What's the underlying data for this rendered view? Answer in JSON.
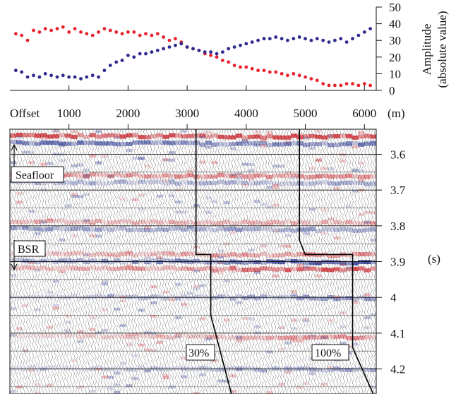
{
  "chart_data": [
    {
      "type": "scatter",
      "xlabel": "Offset",
      "x_unit": "(m)",
      "ylabel": "Amplitude",
      "ylabel_sub": "(absolute value)",
      "xlim": [
        0,
        6200
      ],
      "ylim": [
        0,
        50
      ],
      "x_ticks": [
        "1000",
        "2000",
        "3000",
        "4000",
        "5000",
        "6000"
      ],
      "y_ticks": [
        "0",
        "10",
        "20",
        "30",
        "40",
        "50"
      ],
      "series": [
        {
          "color": "#e8212b",
          "points": [
            [
              100,
              34
            ],
            [
              200,
              33
            ],
            [
              300,
              30
            ],
            [
              400,
              36
            ],
            [
              500,
              35
            ],
            [
              600,
              37
            ],
            [
              700,
              36
            ],
            [
              800,
              37
            ],
            [
              900,
              38
            ],
            [
              1000,
              35
            ],
            [
              1100,
              37
            ],
            [
              1200,
              35
            ],
            [
              1300,
              34
            ],
            [
              1400,
              33
            ],
            [
              1500,
              35
            ],
            [
              1600,
              37
            ],
            [
              1700,
              36
            ],
            [
              1800,
              35
            ],
            [
              1900,
              34
            ],
            [
              2000,
              35
            ],
            [
              2100,
              35
            ],
            [
              2200,
              33
            ],
            [
              2300,
              34
            ],
            [
              2400,
              33
            ],
            [
              2500,
              34
            ],
            [
              2600,
              32
            ],
            [
              2700,
              30
            ],
            [
              2800,
              31
            ],
            [
              2900,
              29
            ],
            [
              3000,
              26
            ],
            [
              3100,
              25
            ],
            [
              3200,
              24
            ],
            [
              3300,
              22
            ],
            [
              3400,
              21
            ],
            [
              3500,
              20
            ],
            [
              3600,
              18
            ],
            [
              3700,
              17
            ],
            [
              3800,
              15
            ],
            [
              3900,
              14
            ],
            [
              4000,
              14
            ],
            [
              4100,
              13
            ],
            [
              4200,
              12
            ],
            [
              4300,
              12
            ],
            [
              4400,
              11
            ],
            [
              4500,
              11
            ],
            [
              4600,
              10
            ],
            [
              4700,
              9
            ],
            [
              4800,
              10
            ],
            [
              4900,
              9
            ],
            [
              5000,
              8
            ],
            [
              5100,
              7
            ],
            [
              5200,
              6
            ],
            [
              5300,
              4
            ],
            [
              5400,
              3
            ],
            [
              5500,
              3
            ],
            [
              5600,
              3
            ],
            [
              5700,
              4
            ],
            [
              5800,
              4
            ],
            [
              5900,
              3
            ],
            [
              6000,
              4
            ],
            [
              6100,
              3
            ]
          ]
        },
        {
          "color": "#2e2a8e",
          "points": [
            [
              100,
              12
            ],
            [
              200,
              11
            ],
            [
              300,
              8
            ],
            [
              400,
              9
            ],
            [
              500,
              8
            ],
            [
              600,
              10
            ],
            [
              700,
              9
            ],
            [
              800,
              8
            ],
            [
              900,
              9
            ],
            [
              1000,
              8
            ],
            [
              1100,
              8
            ],
            [
              1200,
              7
            ],
            [
              1300,
              8
            ],
            [
              1400,
              9
            ],
            [
              1500,
              8
            ],
            [
              1600,
              12
            ],
            [
              1700,
              15
            ],
            [
              1800,
              17
            ],
            [
              1900,
              18
            ],
            [
              2000,
              21
            ],
            [
              2100,
              20
            ],
            [
              2200,
              22
            ],
            [
              2300,
              22
            ],
            [
              2400,
              23
            ],
            [
              2500,
              24
            ],
            [
              2600,
              25
            ],
            [
              2700,
              26
            ],
            [
              2800,
              27
            ],
            [
              2900,
              28
            ],
            [
              3000,
              26
            ],
            [
              3100,
              25
            ],
            [
              3200,
              24
            ],
            [
              3300,
              23
            ],
            [
              3400,
              23
            ],
            [
              3500,
              22
            ],
            [
              3600,
              23
            ],
            [
              3700,
              25
            ],
            [
              3800,
              26
            ],
            [
              3900,
              27
            ],
            [
              4000,
              28
            ],
            [
              4100,
              29
            ],
            [
              4200,
              30
            ],
            [
              4300,
              31
            ],
            [
              4400,
              31
            ],
            [
              4500,
              32
            ],
            [
              4600,
              31
            ],
            [
              4700,
              30
            ],
            [
              4800,
              31
            ],
            [
              4900,
              32
            ],
            [
              5000,
              31
            ],
            [
              5100,
              30
            ],
            [
              5200,
              31
            ],
            [
              5300,
              30
            ],
            [
              5400,
              29
            ],
            [
              5500,
              30
            ],
            [
              5600,
              31
            ],
            [
              5700,
              29
            ],
            [
              5800,
              31
            ],
            [
              5900,
              33
            ],
            [
              6000,
              35
            ],
            [
              6100,
              37
            ]
          ]
        }
      ]
    },
    {
      "type": "heatmap",
      "ylabel_unit": "(s)",
      "ylim": [
        3.53,
        4.27
      ],
      "y_ticks": [
        "3.6",
        "3.7",
        "3.8",
        "3.9",
        "4",
        "4.1",
        "4.2"
      ],
      "xlim": [
        0,
        6200
      ],
      "colors": {
        "positive": "#d9353b",
        "negative": "#2b3a9a"
      },
      "events": [
        {
          "time": 3.55,
          "amp": 1.0
        },
        {
          "time": 3.57,
          "amp": -0.7
        },
        {
          "time": 3.66,
          "amp": 0.6
        },
        {
          "time": 3.68,
          "amp": -0.4
        },
        {
          "time": 3.79,
          "amp": 0.4
        },
        {
          "time": 3.81,
          "amp": -0.5
        },
        {
          "time": 3.88,
          "amp": 0.6
        },
        {
          "time": 3.9,
          "amp": -0.9
        },
        {
          "time": 3.92,
          "amp": 0.8
        },
        {
          "time": 4.0,
          "amp": -0.5
        },
        {
          "time": 4.11,
          "amp": 0.5
        },
        {
          "time": 4.2,
          "amp": -0.4
        }
      ],
      "annotations": {
        "seafloor": "Seafloor",
        "bsr": "BSR",
        "line30": "30%",
        "line100": "100%"
      },
      "mute_lines": [
        {
          "label": "30%",
          "points": [
            [
              3150,
              3.53
            ],
            [
              3150,
              3.88
            ],
            [
              3400,
              3.88
            ],
            [
              3400,
              4.05
            ],
            [
              3750,
              4.27
            ]
          ]
        },
        {
          "label": "100%",
          "points": [
            [
              4900,
              3.53
            ],
            [
              4900,
              3.84
            ],
            [
              5000,
              3.88
            ],
            [
              5800,
              3.88
            ],
            [
              5800,
              4.14
            ],
            [
              6150,
              4.27
            ]
          ]
        }
      ]
    }
  ]
}
